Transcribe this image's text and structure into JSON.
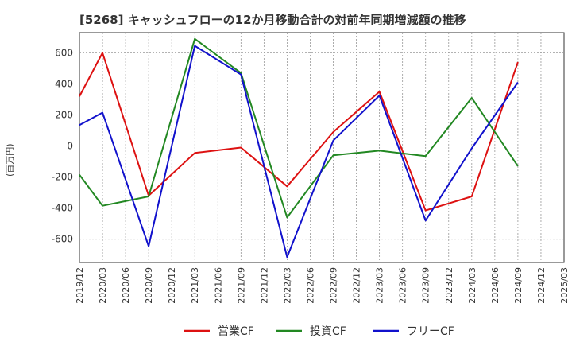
{
  "chart_data": {
    "type": "line",
    "title": "[5268]  キャッシュフローの12か月移動合計の対前年同期増減額の推移",
    "xlabel": "",
    "ylabel": "(百万円)",
    "ylim": [
      -750,
      730
    ],
    "yticks": [
      -600,
      -400,
      -200,
      0,
      200,
      400,
      600
    ],
    "grid": true,
    "legend_position": "bottom",
    "categories": [
      "2019/12",
      "2020/03",
      "2020/06",
      "2020/09",
      "2020/12",
      "2021/03",
      "2021/06",
      "2021/09",
      "2021/12",
      "2022/03",
      "2022/06",
      "2022/09",
      "2022/12",
      "2023/03",
      "2023/06",
      "2023/09",
      "2023/12",
      "2024/03",
      "2024/06",
      "2024/09",
      "2024/12",
      "2025/03"
    ],
    "series": [
      {
        "name": "営業CF",
        "color": "#dd1111",
        "values": [
          320,
          600,
          null,
          -320,
          null,
          -45,
          null,
          -10,
          null,
          -260,
          null,
          90,
          null,
          350,
          null,
          -415,
          null,
          -325,
          null,
          540,
          null,
          null
        ]
      },
      {
        "name": "投資CF",
        "color": "#228822",
        "values": [
          -185,
          -385,
          null,
          -325,
          null,
          690,
          null,
          470,
          null,
          -460,
          null,
          -60,
          null,
          -30,
          null,
          -65,
          null,
          310,
          null,
          -130,
          null,
          null
        ]
      },
      {
        "name": "フリーCF",
        "color": "#1111cc",
        "values": [
          135,
          215,
          null,
          -645,
          null,
          645,
          null,
          460,
          null,
          -715,
          null,
          35,
          null,
          325,
          null,
          -480,
          null,
          -15,
          null,
          410,
          null,
          null
        ]
      }
    ]
  }
}
